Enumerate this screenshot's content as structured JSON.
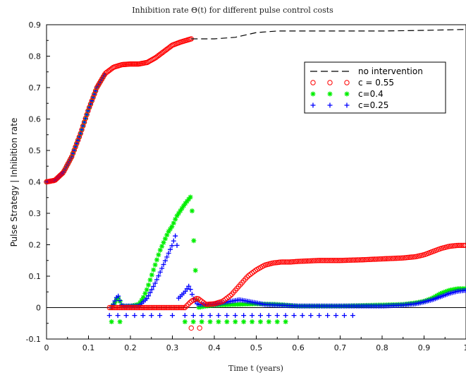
{
  "chart_data": {
    "type": "scatter",
    "title": "Inhibition rate Θ(t) for different pulse control costs",
    "xlabel": "Time t (years)",
    "ylabel": "Pulse Strategy | Inhibition rate",
    "xlim": [
      0,
      1
    ],
    "ylim": [
      -0.1,
      0.9
    ],
    "xticks": [
      "0",
      "0.1",
      "0.2",
      "0.3",
      "0.4",
      "0.5",
      "0.6",
      "0.7",
      "0.8",
      "0.9",
      "1"
    ],
    "yticks": [
      "-0.1",
      "0",
      "0.1",
      "0.2",
      "0.3",
      "0.4",
      "0.5",
      "0.6",
      "0.7",
      "0.8",
      "0.9"
    ],
    "grid": false,
    "legend_position": "top-right",
    "series": [
      {
        "name": "no intervention",
        "style": "dashed-line",
        "color": "#000000",
        "x": [
          0.345,
          0.4,
          0.45,
          0.5,
          0.55,
          0.6,
          0.7,
          0.8,
          0.9,
          1.0
        ],
        "y": [
          0.855,
          0.855,
          0.86,
          0.875,
          0.88,
          0.88,
          0.88,
          0.88,
          0.882,
          0.885
        ]
      },
      {
        "name": "c = 0.55",
        "style": "circle",
        "color": "#ff0000",
        "curve_x": [
          0,
          0.02,
          0.04,
          0.06,
          0.08,
          0.1,
          0.12,
          0.14,
          0.16,
          0.18,
          0.2,
          0.22,
          0.24,
          0.26,
          0.28,
          0.3,
          0.32,
          0.345
        ],
        "curve_y": [
          0.4,
          0.405,
          0.43,
          0.48,
          0.55,
          0.63,
          0.7,
          0.745,
          0.765,
          0.773,
          0.775,
          0.775,
          0.78,
          0.795,
          0.815,
          0.835,
          0.845,
          0.855
        ],
        "pulse_x": [
          0.15,
          0.17,
          0.25,
          0.27,
          0.29,
          0.31,
          0.33,
          0.345,
          0.36,
          0.38,
          0.4,
          0.42,
          0.44,
          0.46,
          0.48,
          0.5,
          0.52,
          0.54,
          0.56,
          0.58,
          0.6,
          0.65,
          0.7,
          0.75,
          0.8,
          0.85,
          0.88,
          0.9,
          0.92,
          0.94,
          0.96,
          0.98,
          1.0
        ],
        "pulse_y": [
          0.0,
          0.0,
          0.0,
          0.0,
          0.0,
          0.0,
          0.0,
          0.02,
          0.03,
          0.01,
          0.012,
          0.02,
          0.04,
          0.07,
          0.1,
          0.12,
          0.135,
          0.142,
          0.145,
          0.145,
          0.147,
          0.15,
          0.15,
          0.152,
          0.155,
          0.158,
          0.162,
          0.168,
          0.178,
          0.188,
          0.195,
          0.198,
          0.198
        ],
        "markers_x": [
          0.345,
          0.365
        ],
        "markers_y": [
          -0.065,
          -0.065
        ]
      },
      {
        "name": "c=0.4",
        "style": "star",
        "color": "#00ee00",
        "curve_x": [
          0,
          0.02,
          0.04,
          0.06,
          0.08,
          0.1,
          0.12,
          0.14
        ],
        "curve_y": [
          0.4,
          0.405,
          0.43,
          0.48,
          0.55,
          0.63,
          0.7,
          0.745
        ],
        "pulse_x": [
          0.155,
          0.165,
          0.17,
          0.18,
          0.2,
          0.22,
          0.23,
          0.24,
          0.25,
          0.26,
          0.27,
          0.28,
          0.29,
          0.3,
          0.31,
          0.32,
          0.33,
          0.345,
          0.36,
          0.38,
          0.4,
          0.45,
          0.5,
          0.55,
          0.6,
          0.7,
          0.8,
          0.85,
          0.88,
          0.9,
          0.92,
          0.94,
          0.96,
          0.98,
          1.0
        ],
        "pulse_y": [
          0.0,
          0.02,
          0.035,
          0.005,
          0.005,
          0.01,
          0.03,
          0.06,
          0.1,
          0.14,
          0.18,
          0.21,
          0.24,
          0.26,
          0.29,
          0.31,
          0.33,
          0.355,
          0.0,
          0.005,
          0.008,
          0.01,
          0.012,
          0.01,
          0.005,
          0.005,
          0.008,
          0.01,
          0.015,
          0.02,
          0.03,
          0.045,
          0.055,
          0.06,
          0.06
        ],
        "markers_x": [
          0.155,
          0.175,
          0.33,
          0.35,
          0.37,
          0.39,
          0.41,
          0.43,
          0.45,
          0.47,
          0.49,
          0.51,
          0.53,
          0.55,
          0.57
        ],
        "markers_y": [
          -0.045,
          -0.045,
          -0.045,
          -0.045,
          -0.045,
          -0.045,
          -0.045,
          -0.045,
          -0.045,
          -0.045,
          -0.045,
          -0.045,
          -0.045,
          -0.045,
          -0.045
        ]
      },
      {
        "name": "c=0.25",
        "style": "plus",
        "color": "#0000ff",
        "curve_x": [
          0,
          0.02,
          0.04,
          0.06,
          0.08,
          0.1,
          0.12,
          0.14
        ],
        "curve_y": [
          0.4,
          0.405,
          0.43,
          0.48,
          0.55,
          0.63,
          0.7,
          0.745
        ],
        "pulse_x": [
          0.155,
          0.17,
          0.18,
          0.2,
          0.22,
          0.24,
          0.26,
          0.28,
          0.3,
          0.31,
          0.315,
          0.33,
          0.34,
          0.35,
          0.36,
          0.38,
          0.4,
          0.42,
          0.44,
          0.46,
          0.48,
          0.5,
          0.52,
          0.55,
          0.6,
          0.7,
          0.8,
          0.85,
          0.88,
          0.9,
          0.92,
          0.94,
          0.96,
          0.98,
          1.0
        ],
        "pulse_y": [
          0.0,
          0.04,
          0.005,
          0.005,
          0.005,
          0.03,
          0.08,
          0.14,
          0.2,
          0.24,
          0.03,
          0.05,
          0.07,
          0.03,
          0.01,
          0.01,
          0.01,
          0.015,
          0.02,
          0.025,
          0.02,
          0.015,
          0.01,
          0.008,
          0.005,
          0.005,
          0.005,
          0.008,
          0.012,
          0.018,
          0.025,
          0.035,
          0.045,
          0.052,
          0.055
        ],
        "markers_x": [
          0.15,
          0.17,
          0.19,
          0.21,
          0.23,
          0.25,
          0.27,
          0.3,
          0.33,
          0.35,
          0.37,
          0.39,
          0.41,
          0.43,
          0.45,
          0.47,
          0.49,
          0.51,
          0.53,
          0.55,
          0.57,
          0.59,
          0.61,
          0.63,
          0.65,
          0.67,
          0.69,
          0.71,
          0.73
        ],
        "markers_y": [
          -0.025,
          -0.025,
          -0.025,
          -0.025,
          -0.025,
          -0.025,
          -0.025,
          -0.025,
          -0.025,
          -0.025,
          -0.025,
          -0.025,
          -0.025,
          -0.025,
          -0.025,
          -0.025,
          -0.025,
          -0.025,
          -0.025,
          -0.025,
          -0.025,
          -0.025,
          -0.025,
          -0.025,
          -0.025,
          -0.025,
          -0.025,
          -0.025,
          -0.025
        ]
      }
    ]
  }
}
